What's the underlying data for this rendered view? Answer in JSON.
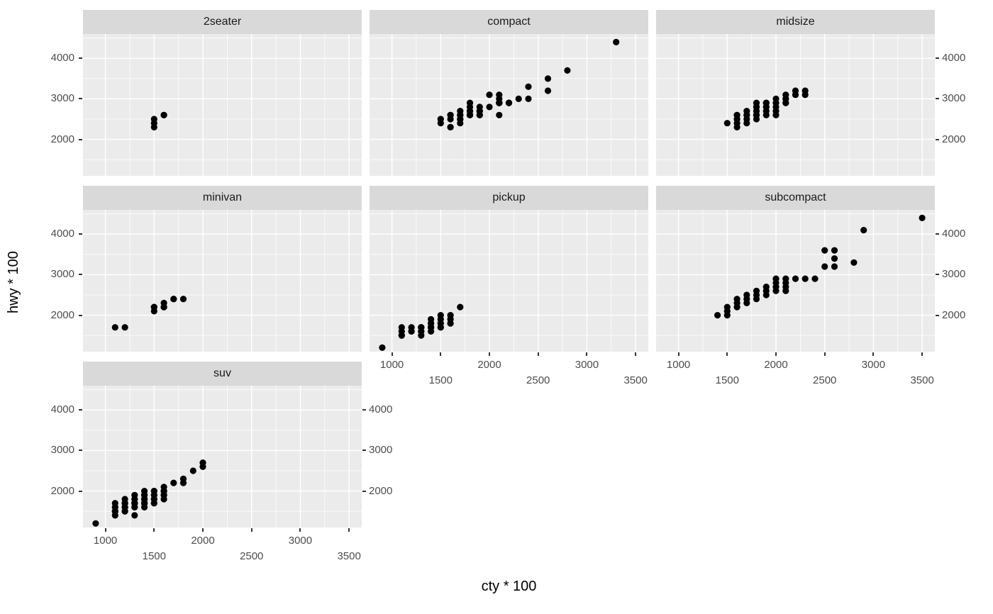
{
  "chart_data": {
    "type": "scatter",
    "title": "",
    "xlabel": "cty * 100",
    "ylabel": "hwy * 100",
    "facet_variable": "class",
    "legend": "none",
    "grid": "on",
    "xlim": [
      770,
      3630
    ],
    "ylim": [
      1100,
      4600
    ],
    "x_ticks": [
      1000,
      1500,
      2000,
      2500,
      3000,
      3500
    ],
    "x_tick_labels": [
      "1000",
      "1500",
      "2000",
      "2500",
      "3000",
      "3500"
    ],
    "x_minor_ticks": [
      1250,
      1750,
      2250,
      2750,
      3250
    ],
    "y_ticks": [
      2000,
      3000,
      4000
    ],
    "y_tick_labels": [
      "2000",
      "3000",
      "4000"
    ],
    "y_minor_ticks": [
      1500,
      2500,
      3500,
      4500
    ],
    "colors": {
      "point": "#000000",
      "panel_bg": "#ebebeb",
      "strip_bg": "#d9d9d9",
      "grid": "#ffffff",
      "tick_label": "#4d4d4d",
      "tick_mark": "#333333"
    },
    "facets": [
      {
        "label": "2seater",
        "points": [
          [
            1500,
            2300
          ],
          [
            1500,
            2400
          ],
          [
            1500,
            2500
          ],
          [
            1600,
            2600
          ],
          [
            1600,
            2600
          ]
        ]
      },
      {
        "label": "compact",
        "points": [
          [
            1800,
            2900
          ],
          [
            2100,
            2900
          ],
          [
            2000,
            3100
          ],
          [
            2100,
            3000
          ],
          [
            1600,
            2600
          ],
          [
            1800,
            2600
          ],
          [
            1800,
            2700
          ],
          [
            1800,
            2600
          ],
          [
            1600,
            2500
          ],
          [
            2000,
            2800
          ],
          [
            1900,
            2700
          ],
          [
            1500,
            2500
          ],
          [
            1700,
            2500
          ],
          [
            1700,
            2500
          ],
          [
            1500,
            2500
          ],
          [
            1500,
            2400
          ],
          [
            1700,
            2600
          ],
          [
            1600,
            2600
          ],
          [
            1700,
            2700
          ],
          [
            1800,
            2600
          ],
          [
            1700,
            2600
          ],
          [
            1800,
            2800
          ],
          [
            1900,
            2800
          ],
          [
            1800,
            2700
          ],
          [
            2100,
            3100
          ],
          [
            1900,
            2700
          ],
          [
            2400,
            3000
          ],
          [
            2400,
            3300
          ],
          [
            2600,
            3500
          ],
          [
            2800,
            3700
          ],
          [
            3300,
            4400
          ],
          [
            2100,
            2900
          ],
          [
            1900,
            2600
          ],
          [
            2100,
            2900
          ],
          [
            2200,
            2900
          ],
          [
            2100,
            2600
          ],
          [
            1600,
            2300
          ],
          [
            2200,
            2900
          ],
          [
            2100,
            2900
          ],
          [
            2100,
            2900
          ],
          [
            1900,
            2600
          ],
          [
            1600,
            2300
          ],
          [
            2100,
            2900
          ],
          [
            2200,
            2900
          ],
          [
            1700,
            2400
          ],
          [
            2600,
            3200
          ],
          [
            2300,
            3000
          ]
        ]
      },
      {
        "label": "midsize",
        "points": [
          [
            1500,
            2400
          ],
          [
            1600,
            2400
          ],
          [
            1600,
            2500
          ],
          [
            1700,
            2500
          ],
          [
            1700,
            2600
          ],
          [
            1800,
            2600
          ],
          [
            1800,
            2700
          ],
          [
            1800,
            2800
          ],
          [
            1900,
            2700
          ],
          [
            1900,
            2800
          ],
          [
            1600,
            2600
          ],
          [
            1700,
            2600
          ],
          [
            1800,
            2600
          ],
          [
            1900,
            2800
          ],
          [
            2000,
            2900
          ],
          [
            2100,
            3000
          ],
          [
            2100,
            2900
          ],
          [
            2000,
            3000
          ],
          [
            2100,
            3100
          ],
          [
            2200,
            3100
          ],
          [
            2200,
            3200
          ],
          [
            2300,
            3200
          ],
          [
            1800,
            2900
          ],
          [
            1900,
            2900
          ],
          [
            1600,
            2300
          ],
          [
            1700,
            2400
          ],
          [
            1800,
            2500
          ],
          [
            1900,
            2600
          ],
          [
            2000,
            2700
          ],
          [
            2000,
            2800
          ],
          [
            2100,
            3000
          ],
          [
            1800,
            2800
          ],
          [
            1900,
            2900
          ],
          [
            2100,
            2900
          ],
          [
            2000,
            2600
          ],
          [
            1600,
            2600
          ],
          [
            1700,
            2700
          ],
          [
            1800,
            2800
          ],
          [
            1600,
            2500
          ],
          [
            1800,
            2600
          ],
          [
            2300,
            3100
          ]
        ]
      },
      {
        "label": "minivan",
        "points": [
          [
            1100,
            1700
          ],
          [
            1200,
            1700
          ],
          [
            1500,
            2100
          ],
          [
            1500,
            2200
          ],
          [
            1600,
            2200
          ],
          [
            1600,
            2200
          ],
          [
            1600,
            2300
          ],
          [
            1700,
            2400
          ],
          [
            1700,
            2400
          ],
          [
            1800,
            2400
          ],
          [
            1500,
            2200
          ]
        ]
      },
      {
        "label": "pickup",
        "points": [
          [
            900,
            1200
          ],
          [
            1100,
            1500
          ],
          [
            1100,
            1600
          ],
          [
            1100,
            1700
          ],
          [
            1200,
            1600
          ],
          [
            1200,
            1700
          ],
          [
            1300,
            1600
          ],
          [
            1300,
            1700
          ],
          [
            1300,
            1700
          ],
          [
            1400,
            1700
          ],
          [
            1400,
            1700
          ],
          [
            1400,
            1800
          ],
          [
            1400,
            1800
          ],
          [
            1500,
            1700
          ],
          [
            1500,
            1800
          ],
          [
            1500,
            1900
          ],
          [
            1600,
            1800
          ],
          [
            1600,
            2000
          ],
          [
            1700,
            2200
          ],
          [
            1300,
            1500
          ],
          [
            1400,
            1600
          ],
          [
            1500,
            2000
          ],
          [
            1600,
            1900
          ],
          [
            1100,
            1500
          ],
          [
            1200,
            1600
          ],
          [
            1300,
            1700
          ],
          [
            1400,
            1700
          ],
          [
            1500,
            1800
          ],
          [
            1400,
            1800
          ],
          [
            1300,
            1600
          ],
          [
            1500,
            1700
          ],
          [
            1600,
            1800
          ],
          [
            1400,
            1900
          ]
        ]
      },
      {
        "label": "subcompact",
        "points": [
          [
            1400,
            2000
          ],
          [
            1500,
            2100
          ],
          [
            1500,
            2200
          ],
          [
            1600,
            2300
          ],
          [
            1600,
            2400
          ],
          [
            1700,
            2400
          ],
          [
            1700,
            2500
          ],
          [
            1800,
            2500
          ],
          [
            1800,
            2600
          ],
          [
            1900,
            2600
          ],
          [
            1900,
            2500
          ],
          [
            2000,
            2600
          ],
          [
            2000,
            2700
          ],
          [
            2000,
            2800
          ],
          [
            2100,
            2800
          ],
          [
            2100,
            2900
          ],
          [
            2100,
            2600
          ],
          [
            2200,
            2900
          ],
          [
            1800,
            2400
          ],
          [
            1900,
            2700
          ],
          [
            2400,
            2900
          ],
          [
            2500,
            3200
          ],
          [
            2500,
            3600
          ],
          [
            2600,
            3600
          ],
          [
            2600,
            3400
          ],
          [
            2800,
            3300
          ],
          [
            2900,
            4100
          ],
          [
            3500,
            4400
          ],
          [
            1700,
            2300
          ],
          [
            1600,
            2200
          ],
          [
            2000,
            2900
          ],
          [
            2100,
            2700
          ],
          [
            1500,
            2000
          ],
          [
            2600,
            3200
          ],
          [
            2300,
            2900
          ]
        ]
      },
      {
        "label": "suv",
        "points": [
          [
            900,
            1200
          ],
          [
            1100,
            1400
          ],
          [
            1100,
            1500
          ],
          [
            1100,
            1500
          ],
          [
            1100,
            1600
          ],
          [
            1100,
            1700
          ],
          [
            1200,
            1500
          ],
          [
            1200,
            1600
          ],
          [
            1200,
            1600
          ],
          [
            1200,
            1700
          ],
          [
            1200,
            1700
          ],
          [
            1200,
            1800
          ],
          [
            1300,
            1400
          ],
          [
            1300,
            1600
          ],
          [
            1300,
            1700
          ],
          [
            1300,
            1700
          ],
          [
            1300,
            1700
          ],
          [
            1300,
            1800
          ],
          [
            1300,
            1900
          ],
          [
            1400,
            1600
          ],
          [
            1400,
            1700
          ],
          [
            1400,
            1700
          ],
          [
            1400,
            1700
          ],
          [
            1400,
            1800
          ],
          [
            1400,
            1800
          ],
          [
            1400,
            1900
          ],
          [
            1400,
            2000
          ],
          [
            1500,
            1700
          ],
          [
            1500,
            1800
          ],
          [
            1500,
            1800
          ],
          [
            1500,
            1900
          ],
          [
            1500,
            2000
          ],
          [
            1500,
            2000
          ],
          [
            1600,
            1800
          ],
          [
            1600,
            1900
          ],
          [
            1600,
            2000
          ],
          [
            1600,
            2100
          ],
          [
            1700,
            2200
          ],
          [
            1800,
            2300
          ],
          [
            1900,
            2500
          ],
          [
            2000,
            2600
          ],
          [
            2000,
            2700
          ],
          [
            1100,
            1500
          ],
          [
            1200,
            1600
          ],
          [
            1300,
            1700
          ],
          [
            1400,
            1800
          ],
          [
            1500,
            1900
          ],
          [
            1600,
            2000
          ],
          [
            1300,
            1800
          ],
          [
            1400,
            1900
          ],
          [
            1200,
            1500
          ],
          [
            1300,
            1600
          ],
          [
            1400,
            1700
          ],
          [
            1500,
            1800
          ],
          [
            1600,
            1900
          ],
          [
            1100,
            1600
          ],
          [
            1200,
            1700
          ],
          [
            1300,
            1700
          ],
          [
            1400,
            1800
          ],
          [
            1500,
            1700
          ],
          [
            1600,
            2000
          ],
          [
            1800,
            2200
          ]
        ]
      }
    ]
  }
}
